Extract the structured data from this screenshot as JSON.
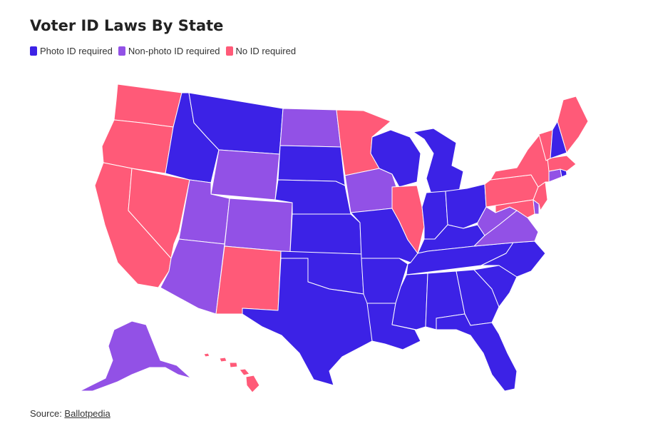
{
  "title": "Voter ID Laws By State",
  "legend": [
    {
      "key": "photo",
      "label": "Photo ID required",
      "color": "#3c22e6"
    },
    {
      "key": "nonphoto",
      "label": "Non-photo ID required",
      "color": "#9251e6"
    },
    {
      "key": "none",
      "label": "No ID required",
      "color": "#ff5a78"
    }
  ],
  "source": {
    "prefix": "Source: ",
    "link_text": "Ballotpedia"
  },
  "states": {
    "WA": "none",
    "OR": "none",
    "CA": "none",
    "NV": "none",
    "ID": "photo",
    "MT": "photo",
    "WY": "nonphoto",
    "UT": "nonphoto",
    "CO": "nonphoto",
    "AZ": "nonphoto",
    "NM": "none",
    "ND": "nonphoto",
    "SD": "photo",
    "NE": "photo",
    "KS": "photo",
    "OK": "photo",
    "TX": "photo",
    "MN": "none",
    "IA": "nonphoto",
    "MO": "photo",
    "AR": "photo",
    "LA": "photo",
    "WI": "photo",
    "IL": "none",
    "MI": "photo",
    "IN": "photo",
    "OH": "photo",
    "KY": "photo",
    "TN": "photo",
    "MS": "photo",
    "AL": "photo",
    "GA": "photo",
    "FL": "photo",
    "SC": "photo",
    "NC": "photo",
    "VA": "nonphoto",
    "WV": "nonphoto",
    "MD": "none",
    "DE": "nonphoto",
    "PA": "none",
    "NJ": "none",
    "NY": "none",
    "CT": "nonphoto",
    "RI": "photo",
    "MA": "none",
    "VT": "none",
    "NH": "photo",
    "ME": "none",
    "AK": "nonphoto",
    "HI": "none"
  }
}
